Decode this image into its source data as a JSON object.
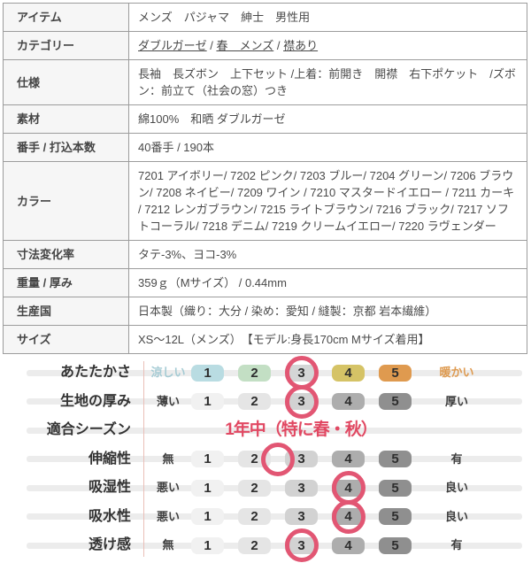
{
  "spec_table": {
    "rows": [
      {
        "label": "アイテム",
        "value": "メンズ　パジャマ　紳士　男性用"
      },
      {
        "label": "カテゴリー",
        "links": [
          "ダブルガーゼ",
          "春　メンズ",
          "襟あり"
        ],
        "separator": " / "
      },
      {
        "label": "仕様",
        "value": "長袖　長ズボン　上下セット /上着：前開き　開襟　右下ポケット　/ズボン：前立て（社会の窓）つき"
      },
      {
        "label": "素材",
        "value": "綿100%　和晒 ダブルガーゼ"
      },
      {
        "label": "番手 / 打込本数",
        "value": "40番手 / 190本"
      },
      {
        "label": "カラー",
        "value": "7201 アイボリー/ 7202 ピンク/ 7203 ブルー/ 7204 グリーン/ 7206 ブラウン/ 7208 ネイビー/ 7209 ワイン / 7210 マスタードイエロー / 7211 カーキ / 7212 レンガブラウン/ 7215 ライトブラウン/ 7216 ブラック/ 7217 ソフトコーラル/ 7218 デニム/ 7219 クリームイエロー/ 7220 ラヴェンダー"
      },
      {
        "label": "寸法変化率",
        "value": "タテ-3%、ヨコ-3%"
      },
      {
        "label": "重量 / 厚み",
        "value": "359ｇ（Mサイズ） / 0.44mm"
      },
      {
        "label": "生産国",
        "value": "日本製（織り：大分 / 染め：愛知 / 縫製：京都 岩本繊維）"
      },
      {
        "label": "サイズ",
        "value": "XS～12L（メンズ）　【モデル:身長170cm Mサイズ着用】"
      }
    ]
  },
  "rating_chart": {
    "scale_numbers": [
      "1",
      "2",
      "3",
      "4",
      "5"
    ],
    "colors": {
      "circle": "#e25673",
      "season_text": "#e14862",
      "vertical_line": "#eabfb8",
      "band": "#ececec",
      "gray_pills": [
        "#f1f1f1",
        "#e5e5e5",
        "#d2d2d2",
        "#adadad",
        "#8f8f8f"
      ],
      "warmth_pills": [
        "#b9dce2",
        "#c3dfc4",
        "#d4d6d6",
        "#d5c366",
        "#df9a4f"
      ],
      "cool_label": "#a5cbd4",
      "warm_label": "#de9a50"
    },
    "rows": [
      {
        "name": "あたたかさ",
        "left": "涼しい",
        "right": "暖かい",
        "type": "warmth",
        "rating": 3
      },
      {
        "name": "生地の厚み",
        "left": "薄い",
        "right": "厚い",
        "type": "gray",
        "rating": 3
      },
      {
        "name": "適合シーズン",
        "type": "text",
        "text": "1年中（特に春・秋）"
      },
      {
        "name": "伸縮性",
        "left": "無",
        "right": "有",
        "type": "gray",
        "rating": 2.5
      },
      {
        "name": "吸湿性",
        "left": "悪い",
        "right": "良い",
        "type": "gray",
        "rating": 4
      },
      {
        "name": "吸水性",
        "left": "悪い",
        "right": "良い",
        "type": "gray",
        "rating": 4
      },
      {
        "name": "透け感",
        "left": "無",
        "right": "有",
        "type": "gray",
        "rating": 3
      }
    ]
  }
}
